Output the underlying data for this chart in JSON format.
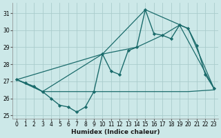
{
  "xlabel": "Humidex (Indice chaleur)",
  "background_color": "#cce8e8",
  "grid_color": "#aacccc",
  "line_color": "#1a6b6b",
  "x": [
    0,
    1,
    2,
    3,
    4,
    5,
    6,
    7,
    8,
    9,
    10,
    11,
    12,
    13,
    14,
    15,
    16,
    17,
    18,
    19,
    20,
    21,
    22,
    23
  ],
  "series_main": [
    27.1,
    26.9,
    26.7,
    26.4,
    26.0,
    25.6,
    25.5,
    25.2,
    25.5,
    26.4,
    28.6,
    27.6,
    27.4,
    28.8,
    29.0,
    31.2,
    29.8,
    29.7,
    29.5,
    30.3,
    30.1,
    29.1,
    27.4,
    26.6
  ],
  "trend_line1_x": [
    0,
    3,
    9,
    11,
    15,
    17,
    20,
    23
  ],
  "trend_line1_y": [
    27.1,
    26.4,
    26.4,
    26.4,
    26.4,
    26.4,
    26.4,
    26.5
  ],
  "trend_line2_x": [
    0,
    10,
    15,
    20,
    23
  ],
  "trend_line2_y": [
    27.1,
    28.6,
    31.2,
    30.1,
    26.6
  ],
  "trend_line3_x": [
    0,
    2,
    3,
    10,
    14,
    17,
    19,
    23
  ],
  "trend_line3_y": [
    27.1,
    26.7,
    26.4,
    28.6,
    29.0,
    29.7,
    30.3,
    26.6
  ],
  "ylim": [
    24.8,
    31.6
  ],
  "xlim": [
    -0.5,
    23.5
  ],
  "yticks": [
    25,
    26,
    27,
    28,
    29,
    30,
    31
  ],
  "xticks": [
    0,
    1,
    2,
    3,
    4,
    5,
    6,
    7,
    8,
    9,
    10,
    11,
    12,
    13,
    14,
    15,
    16,
    17,
    18,
    19,
    20,
    21,
    22,
    23
  ]
}
